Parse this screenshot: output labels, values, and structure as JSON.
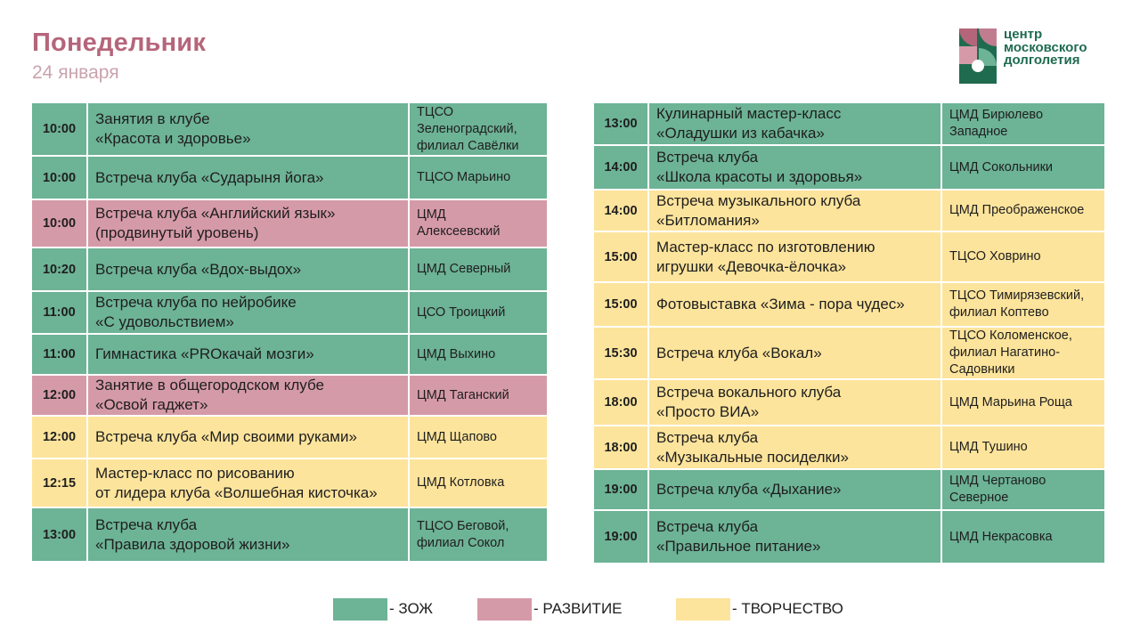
{
  "header": {
    "title": "Понедельник",
    "date": "24 января"
  },
  "logo": {
    "line1": "центр",
    "line2": "московского",
    "line3": "долголетия"
  },
  "colors": {
    "zozh": "#6db396",
    "razvitie": "#d59aa8",
    "tvorchestvo": "#fde49c",
    "title": "#b5657a"
  },
  "left_schedule": [
    {
      "time": "10:00",
      "event": [
        "Занятия в клубе",
        "«Красота и здоровье»"
      ],
      "venue": [
        "ТЦСО",
        "Зеленоградский,",
        "филиал Савёлки"
      ],
      "category": "zozh"
    },
    {
      "time": "10:00",
      "event": [
        "Встреча клуба «Сударыня йога»"
      ],
      "venue": [
        "ТЦСО Марьино"
      ],
      "category": "zozh"
    },
    {
      "time": "10:00",
      "event": [
        "Встреча клуба «Английский язык»",
        "(продвинутый уровень)"
      ],
      "venue": [
        "ЦМД",
        "Алексеевский"
      ],
      "category": "razv"
    },
    {
      "time": "10:20",
      "event": [
        "Встреча клуба «Вдох-выдох»"
      ],
      "venue": [
        "ЦМД Северный"
      ],
      "category": "zozh"
    },
    {
      "time": "11:00",
      "event": [
        "Встреча клуба по нейробике",
        "«С удовольствием»"
      ],
      "venue": [
        "ЦСО Троицкий"
      ],
      "category": "zozh"
    },
    {
      "time": "11:00",
      "event": [
        "Гимнастика «PROкачай мозги»"
      ],
      "venue": [
        "ЦМД Выхино"
      ],
      "category": "zozh"
    },
    {
      "time": "12:00",
      "event": [
        "Занятие в общегородском клубе",
        "«Освой гаджет»"
      ],
      "venue": [
        "ЦМД Таганский"
      ],
      "category": "razv"
    },
    {
      "time": "12:00",
      "event": [
        "Встреча клуба «Мир своими руками»"
      ],
      "venue": [
        "ЦМД Щапово"
      ],
      "category": "tvor"
    },
    {
      "time": "12:15",
      "event": [
        "Мастер-класс по рисованию",
        "от лидера клуба «Волшебная кисточка»"
      ],
      "venue": [
        "ЦМД Котловка"
      ],
      "category": "tvor"
    },
    {
      "time": "13:00",
      "event": [
        "Встреча клуба",
        "«Правила здоровой жизни»"
      ],
      "venue": [
        "ТЦСО Беговой,",
        "филиал Сокол"
      ],
      "category": "zozh"
    }
  ],
  "right_schedule": [
    {
      "time": "13:00",
      "event": [
        "Кулинарный мастер-класс",
        "«Оладушки из кабачка»"
      ],
      "venue": [
        "ЦМД Бирюлево",
        "Западное"
      ],
      "category": "zozh"
    },
    {
      "time": "14:00",
      "event": [
        "Встреча клуба",
        "«Школа красоты и здоровья»"
      ],
      "venue": [
        "ЦМД Сокольники"
      ],
      "category": "zozh"
    },
    {
      "time": "14:00",
      "event": [
        "Встреча музыкального клуба",
        "«Битломания»"
      ],
      "venue": [
        "ЦМД Преображенское"
      ],
      "category": "tvor"
    },
    {
      "time": "15:00",
      "event": [
        "Мастер-класс по изготовлению",
        "игрушки «Девочка-ёлочка»"
      ],
      "venue": [
        "ТЦСО Ховрино"
      ],
      "category": "tvor"
    },
    {
      "time": "15:00",
      "event": [
        "Фотовыставка «Зима - пора чудес»"
      ],
      "venue": [
        "ТЦСО Тимирязевский,",
        "филиал Коптево"
      ],
      "category": "tvor"
    },
    {
      "time": "15:30",
      "event": [
        "Встреча клуба «Вокал»"
      ],
      "venue": [
        "ТЦСО Коломенское,",
        "филиал Нагатино-",
        "Садовники"
      ],
      "category": "tvor"
    },
    {
      "time": "18:00",
      "event": [
        "Встреча вокального клуба",
        "«Просто ВИА»"
      ],
      "venue": [
        "ЦМД Марьина Роща"
      ],
      "category": "tvor"
    },
    {
      "time": "18:00",
      "event": [
        "Встреча клуба",
        "«Музыкальные посиделки»"
      ],
      "venue": [
        "ЦМД Тушино"
      ],
      "category": "tvor"
    },
    {
      "time": "19:00",
      "event": [
        "Встреча клуба «Дыхание»"
      ],
      "venue": [
        "ЦМД Чертаново",
        "Северное"
      ],
      "category": "zozh"
    },
    {
      "time": "19:00",
      "event": [
        "Встреча клуба",
        "«Правильное питание»"
      ],
      "venue": [
        "ЦМД Некрасовка"
      ],
      "category": "zozh"
    }
  ],
  "legend": {
    "zozh": "- ЗОЖ",
    "razvitie": "- РАЗВИТИЕ",
    "tvorchestvo": "- ТВОРЧЕСТВО"
  }
}
